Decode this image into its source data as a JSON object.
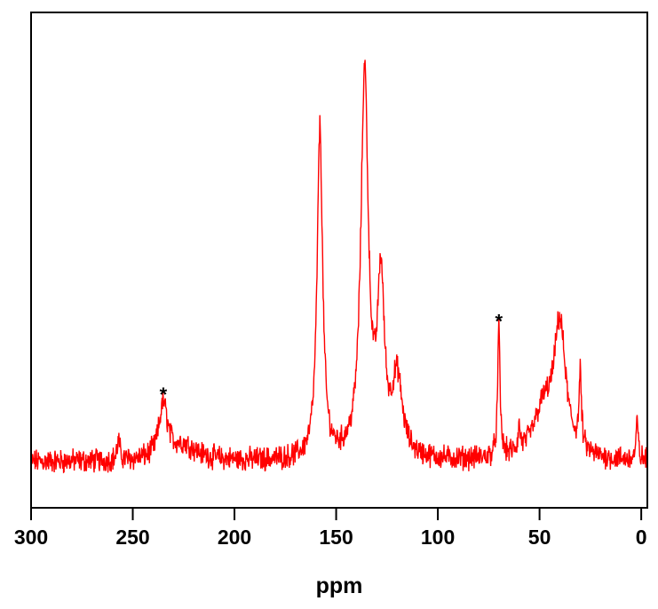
{
  "chart_data": {
    "type": "line",
    "title": "",
    "xlabel": "ppm",
    "ylabel": "",
    "xlim": [
      300,
      -3
    ],
    "ylim": [
      -0.12,
      1.17
    ],
    "x_reversed": true,
    "grid": false,
    "xticks": [
      300,
      250,
      200,
      150,
      100,
      50,
      0
    ],
    "color": "#ff0000",
    "noise_amplitude": 0.025,
    "peaks": [
      {
        "ppm": 257,
        "height": 0.05,
        "width": 0.8
      },
      {
        "ppm": 235,
        "height": 0.14,
        "width": 2.5
      },
      {
        "ppm": 225,
        "height": 0.04,
        "width": 8
      },
      {
        "ppm": 158,
        "height": 0.86,
        "width": 1.6
      },
      {
        "ppm": 136,
        "height": 1.0,
        "width": 2.2
      },
      {
        "ppm": 128,
        "height": 0.44,
        "width": 2.0
      },
      {
        "ppm": 120,
        "height": 0.2,
        "width": 3.0
      },
      {
        "ppm": 70,
        "height": 0.33,
        "width": 0.7
      },
      {
        "ppm": 60,
        "height": 0.06,
        "width": 0.6
      },
      {
        "ppm": 48,
        "height": 0.12,
        "width": 6
      },
      {
        "ppm": 40,
        "height": 0.33,
        "width": 3.5
      },
      {
        "ppm": 30,
        "height": 0.19,
        "width": 0.7
      },
      {
        "ppm": 2,
        "height": 0.1,
        "width": 0.6
      }
    ],
    "annotations": [
      {
        "text": "*",
        "ppm": 235,
        "y": 0.19
      },
      {
        "text": "*",
        "ppm": 70,
        "y": 0.38
      }
    ]
  }
}
